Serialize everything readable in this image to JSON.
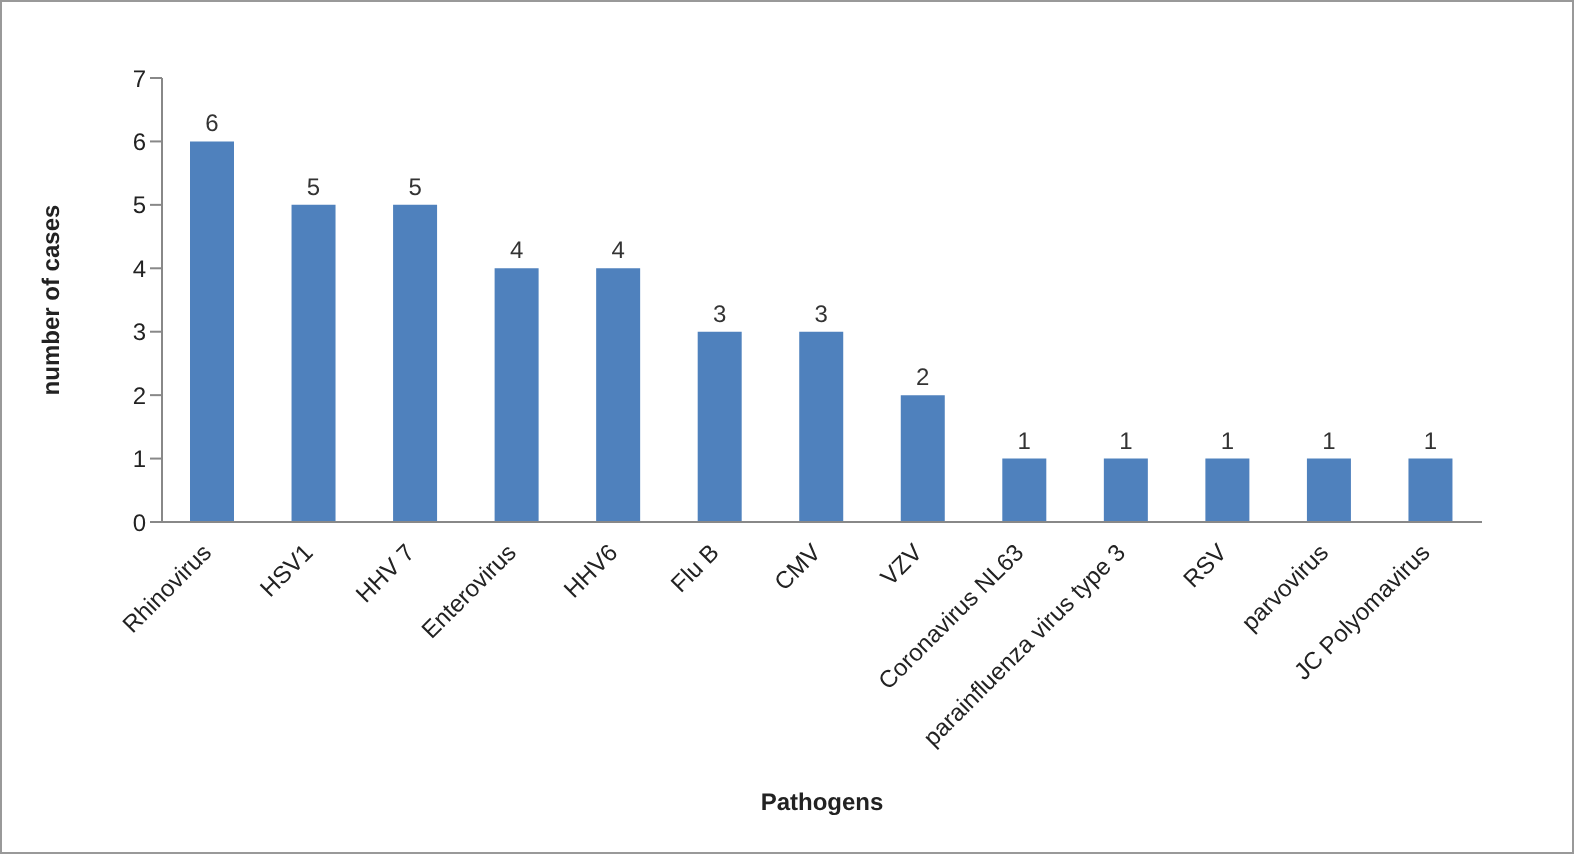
{
  "chart_data": {
    "type": "bar",
    "xlabel": "Pathogens",
    "ylabel": "number of cases",
    "categories": [
      "Rhinovirus",
      "HSV1",
      "HHV 7",
      "Enterovirus",
      "HHV6",
      "Flu B",
      "CMV",
      "VZV",
      "Coronavirus NL63",
      "parainfluenza virus type 3",
      "RSV",
      "parvovirus",
      "JC Polyomavirus"
    ],
    "values": [
      6,
      5,
      5,
      4,
      4,
      3,
      3,
      2,
      1,
      1,
      1,
      1,
      1
    ],
    "color": "#4f81bd",
    "ylim": [
      0,
      7
    ],
    "yticks": [
      0,
      1,
      2,
      3,
      4,
      5,
      6,
      7
    ],
    "grid": false,
    "data_labels": true,
    "legend": false
  }
}
